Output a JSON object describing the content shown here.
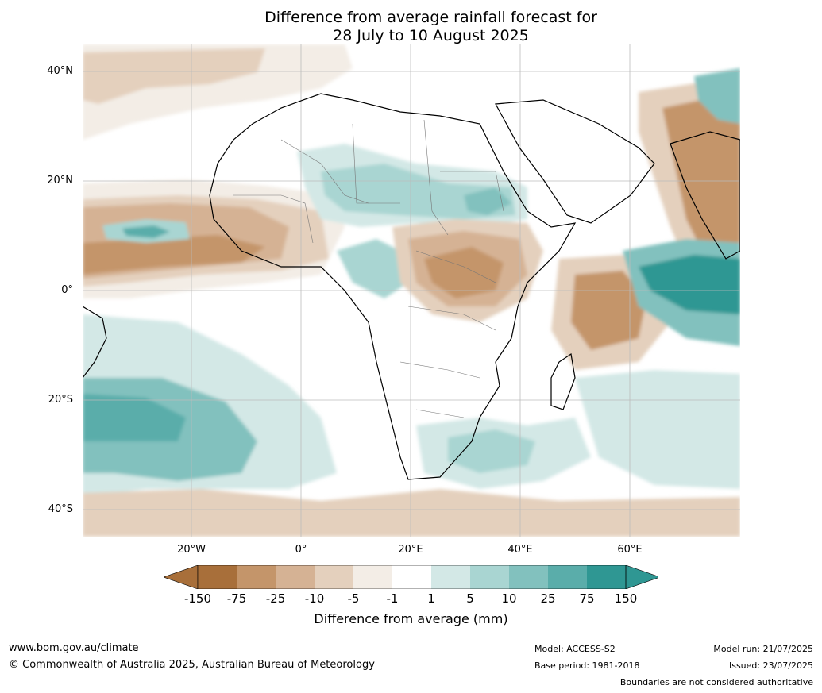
{
  "title": {
    "line1": "Difference from average rainfall forecast for",
    "line2": "28 July to 10 August 2025"
  },
  "map": {
    "region": "Africa",
    "lat_labels": [
      "40°N",
      "20°N",
      "0°",
      "20°S",
      "40°S"
    ],
    "lon_labels": [
      "20°W",
      "0°",
      "20°E",
      "40°E",
      "60°E"
    ]
  },
  "legend": {
    "label": "Difference from average (mm)",
    "ticks": [
      "-150",
      "-75",
      "-25",
      "-10",
      "-5",
      "-1",
      "1",
      "5",
      "10",
      "25",
      "75",
      "150"
    ],
    "colors": [
      "#a86f3a",
      "#c4956a",
      "#d5b294",
      "#e4d0bd",
      "#f3ede6",
      "#ffffff",
      "#d3e8e6",
      "#a9d5d2",
      "#82c1be",
      "#5aadaa",
      "#2f9793",
      "#1f7f7b"
    ],
    "extend_low_color": "#a86f3a",
    "extend_high_color": "#2f9793"
  },
  "footer": {
    "website": "www.bom.gov.au/climate",
    "copyright": "© Commonwealth of Australia 2025, Australian Bureau of Meteorology",
    "model": "Model: ACCESS-S2",
    "base_period": "Base period: 1981-2018",
    "model_run": "Model run: 21/07/2025",
    "issued": "Issued: 23/07/2025",
    "disclaimer": "Boundaries are not considered authoritative"
  }
}
